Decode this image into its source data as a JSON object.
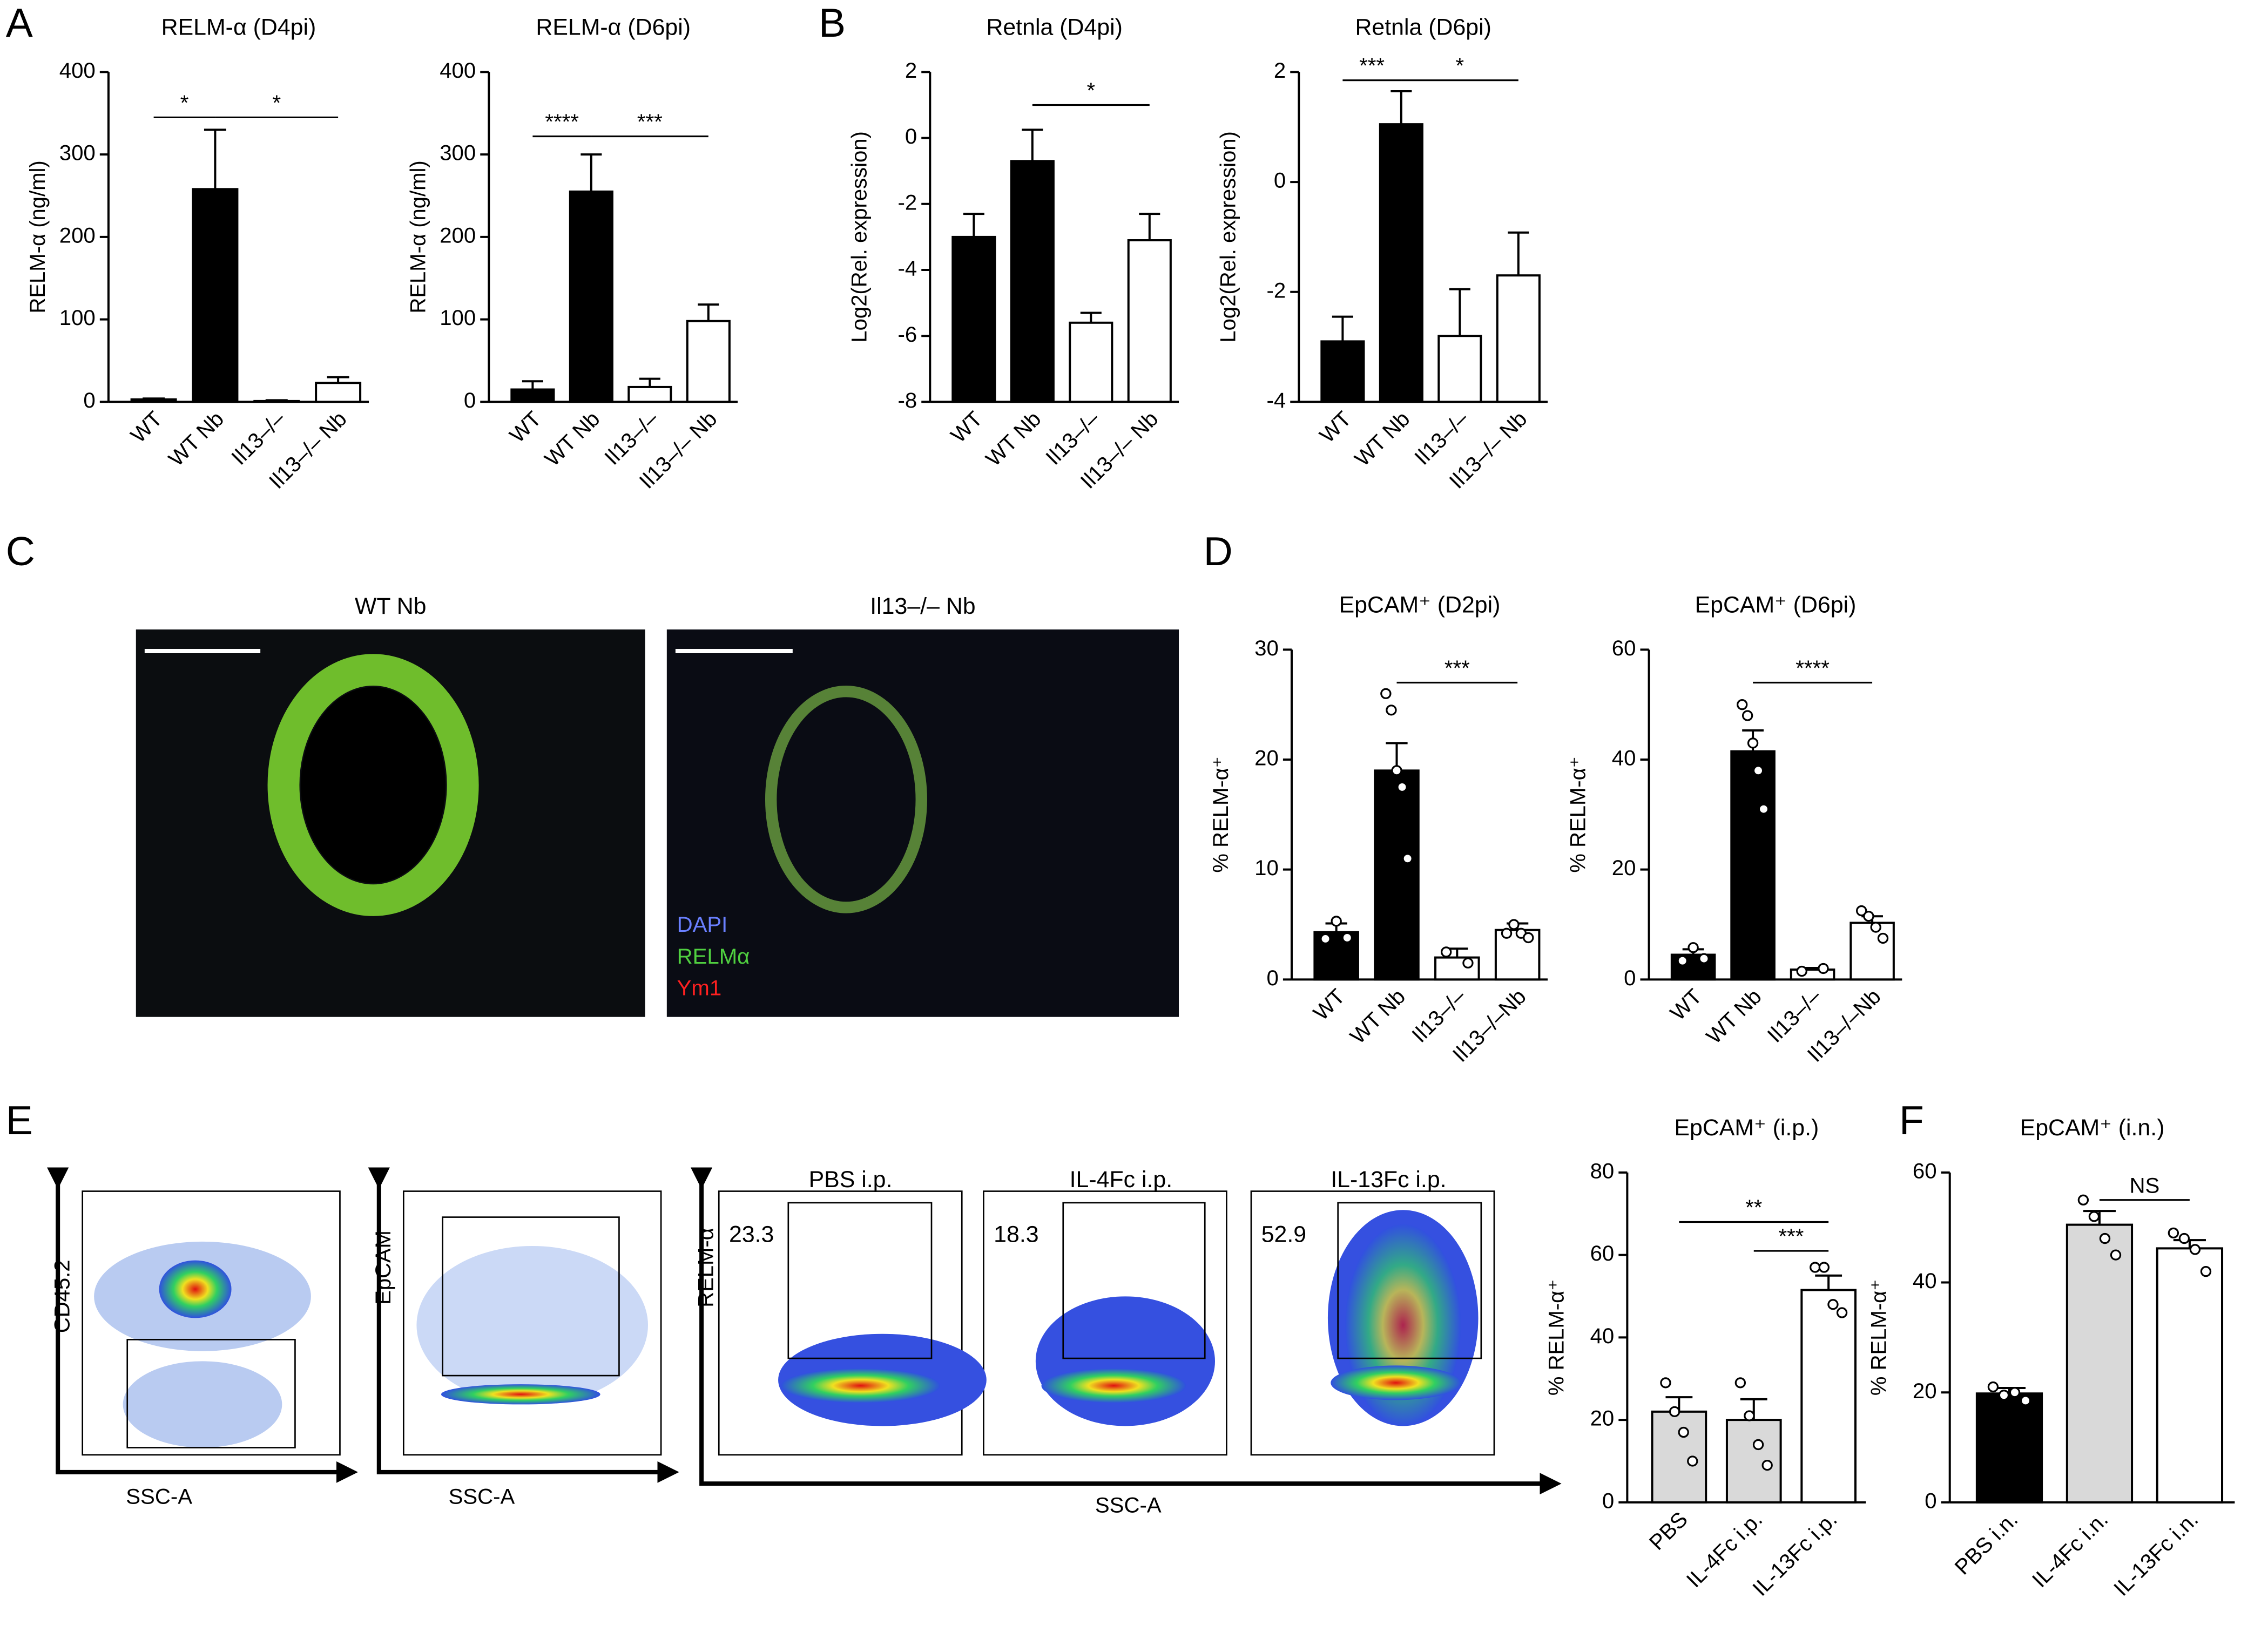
{
  "panels": [
    "A",
    "B",
    "C",
    "D",
    "E",
    "F"
  ],
  "chart_data": [
    {
      "type": "bar",
      "title": "RELM-α (D4pi)",
      "ylabel": "RELM-α (ng/ml)",
      "categories": [
        "WT",
        "WT Nb",
        "Il13–/–",
        "Il13–/– Nb"
      ],
      "values": [
        3,
        258,
        1,
        23
      ],
      "errors": [
        1,
        72,
        1,
        7
      ],
      "colors": [
        "#000000",
        "#000000",
        "#ffffff",
        "#ffffff"
      ],
      "ylim": [
        0,
        400
      ],
      "yticks": [
        0,
        100,
        200,
        300,
        400
      ],
      "significance": [
        {
          "from": 0,
          "to": 1,
          "y": 345,
          "label": "*"
        },
        {
          "from": 1,
          "to": 3,
          "y": 345,
          "label": "*"
        }
      ]
    },
    {
      "type": "bar",
      "title": "RELM-α (D6pi)",
      "ylabel": "RELM-α (ng/ml)",
      "categories": [
        "WT",
        "WT Nb",
        "Il13–/–",
        "Il13–/– Nb"
      ],
      "values": [
        15,
        255,
        18,
        98
      ],
      "errors": [
        10,
        45,
        10,
        20
      ],
      "colors": [
        "#000000",
        "#000000",
        "#ffffff",
        "#ffffff"
      ],
      "ylim": [
        0,
        400
      ],
      "yticks": [
        0,
        100,
        200,
        300,
        400
      ],
      "significance": [
        {
          "from": 0,
          "to": 1,
          "y": 322,
          "label": "****"
        },
        {
          "from": 1,
          "to": 3,
          "y": 322,
          "label": "***"
        }
      ]
    },
    {
      "type": "bar",
      "title": "Retnla (D4pi)",
      "ylabel": "Log2(Rel. expression)",
      "categories": [
        "WT",
        "WT Nb",
        "Il13–/–",
        "Il13–/– Nb"
      ],
      "values": [
        -3,
        -0.7,
        -5.6,
        -3.1
      ],
      "errors": [
        0.7,
        0.95,
        0.3,
        0.8
      ],
      "colors": [
        "#000000",
        "#000000",
        "#ffffff",
        "#ffffff"
      ],
      "ylim": [
        -8,
        2
      ],
      "yticks": [
        -8,
        -6,
        -4,
        -2,
        0,
        2
      ],
      "significance": [
        {
          "from": 1,
          "to": 3,
          "y": 1,
          "label": "*"
        }
      ]
    },
    {
      "type": "bar",
      "title": "Retnla (D6pi)",
      "ylabel": "Log2(Rel. expression)",
      "categories": [
        "WT",
        "WT Nb",
        "Il13–/–",
        "Il13–/– Nb"
      ],
      "values": [
        -2.9,
        1.05,
        -2.8,
        -1.7
      ],
      "errors": [
        0.45,
        0.6,
        0.85,
        0.78
      ],
      "colors": [
        "#000000",
        "#000000",
        "#ffffff",
        "#ffffff"
      ],
      "ylim": [
        -4,
        2
      ],
      "yticks": [
        -4,
        -2,
        0,
        2
      ],
      "significance": [
        {
          "from": 0,
          "to": 1,
          "y": 1.85,
          "label": "***"
        },
        {
          "from": 1,
          "to": 3,
          "y": 1.85,
          "label": "*"
        }
      ]
    },
    {
      "type": "bar",
      "title": "EpCAM⁺ (D2pi)",
      "ylabel": "% RELM-α⁺",
      "categories": [
        "WT",
        "WT Nb",
        "Il13–/–",
        "Il13–/–Nb"
      ],
      "values": [
        4.3,
        19,
        2,
        4.5
      ],
      "errors": [
        0.8,
        2.5,
        0.8,
        0.6
      ],
      "colors": [
        "#000000",
        "#000000",
        "#ffffff",
        "#ffffff"
      ],
      "ylim": [
        0,
        30
      ],
      "yticks": [
        0,
        10,
        20,
        30
      ],
      "points": [
        [
          3.7,
          5.3,
          3.8
        ],
        [
          26,
          24.5,
          19,
          17.5,
          11
        ],
        [
          2.5,
          1.5
        ],
        [
          4.2,
          5,
          4.2,
          3.8
        ]
      ],
      "significance": [
        {
          "from": 1,
          "to": 3,
          "y": 27,
          "label": "***"
        }
      ]
    },
    {
      "type": "bar",
      "title": "EpCAM⁺ (D6pi)",
      "ylabel": "% RELM-α⁺",
      "categories": [
        "WT",
        "WT Nb",
        "Il13–/–",
        "Il13–/–Nb"
      ],
      "values": [
        4.5,
        41.5,
        1.8,
        10.3
      ],
      "errors": [
        1,
        3.8,
        0.3,
        1.2
      ],
      "colors": [
        "#000000",
        "#000000",
        "#ffffff",
        "#ffffff"
      ],
      "ylim": [
        0,
        60
      ],
      "yticks": [
        0,
        20,
        40,
        60
      ],
      "points": [
        [
          3.4,
          5.8,
          3.8
        ],
        [
          50,
          48,
          43,
          38,
          31
        ],
        [
          1.5,
          2
        ],
        [
          12.5,
          11.5,
          9.5,
          7.5
        ]
      ],
      "significance": [
        {
          "from": 1,
          "to": 3,
          "y": 54,
          "label": "****"
        }
      ]
    },
    {
      "type": "bar",
      "title": "EpCAM⁺ (i.p.)",
      "ylabel": "% RELM-α⁺",
      "categories": [
        "PBS",
        "IL-4Fc i.p.",
        "IL-13Fc i.p."
      ],
      "values": [
        22,
        20,
        51.5
      ],
      "errors": [
        3.5,
        5,
        3.5
      ],
      "colors": [
        "#d9d9d9",
        "#d9d9d9",
        "#ffffff"
      ],
      "ylim": [
        0,
        80
      ],
      "yticks": [
        0,
        20,
        40,
        60,
        80
      ],
      "points": [
        [
          29,
          22,
          17,
          10
        ],
        [
          29,
          21,
          14,
          9
        ],
        [
          57,
          57,
          48,
          46
        ]
      ],
      "significance": [
        {
          "from": 0,
          "to": 2,
          "y": 68,
          "label": "**"
        },
        {
          "from": 1,
          "to": 2,
          "y": 61,
          "label": "***"
        }
      ]
    },
    {
      "type": "bar",
      "title": "EpCAM⁺ (i.n.)",
      "ylabel": "% RELM-α⁺",
      "categories": [
        "PBS i.n.",
        "IL-4Fc i.n.",
        "IL-13Fc i.n."
      ],
      "values": [
        19.8,
        50.5,
        46.2
      ],
      "errors": [
        1,
        2.5,
        1.5
      ],
      "colors": [
        "#000000",
        "#d9d9d9",
        "#ffffff"
      ],
      "ylim": [
        0,
        60
      ],
      "yticks": [
        0,
        20,
        40,
        60
      ],
      "points": [
        [
          21,
          19.5,
          20,
          18.5
        ],
        [
          55,
          52,
          48,
          45
        ],
        [
          49,
          48,
          46,
          42
        ]
      ],
      "significance": [
        {
          "from": 1,
          "to": 2,
          "y": 55,
          "label": "NS"
        }
      ]
    }
  ],
  "images": {
    "titles": [
      "WT Nb",
      "Il13–/– Nb"
    ],
    "legend": [
      "DAPI",
      "RELMα",
      "Ym1"
    ]
  },
  "flow": {
    "plots": [
      {
        "ylabel": "CD45.2",
        "xlabel": "SSC-A"
      },
      {
        "ylabel": "EpCAM",
        "xlabel": "SSC-A"
      }
    ],
    "gated": {
      "ylabel": "RELM-α",
      "xlabel": "SSC-A",
      "samples": [
        {
          "title": "PBS i.p.",
          "gate": 23.3
        },
        {
          "title": "IL-4Fc i.p.",
          "gate": 18.3
        },
        {
          "title": "IL-13Fc i.p.",
          "gate": 52.9
        }
      ]
    }
  }
}
